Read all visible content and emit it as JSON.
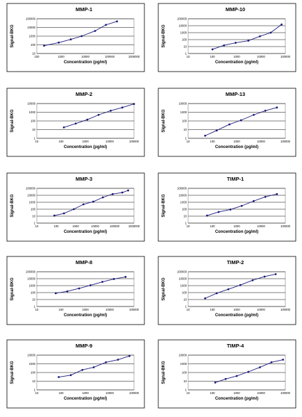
{
  "chart_data": [
    {
      "type": "line",
      "title": "MMP-1",
      "xlabel": "Concentration (pg/ml)",
      "ylabel": "Signal-BKG",
      "xscale": "log",
      "yscale": "log",
      "xlim": [
        100,
        1000000
      ],
      "ylim": [
        10,
        100000
      ],
      "x_ticks": [
        "100",
        "1000",
        "10000",
        "100000",
        "1000000"
      ],
      "y_ticks": [
        "10",
        "100",
        "1000",
        "10000",
        "100000"
      ],
      "grid": "horizontal",
      "series": [
        {
          "x": [
            200,
            800,
            2500,
            7000,
            25000,
            70000,
            200000
          ],
          "y": [
            80,
            180,
            420,
            1000,
            4000,
            20000,
            50000
          ]
        }
      ]
    },
    {
      "type": "line",
      "title": "MMP-10",
      "xlabel": "Concentration (pg/ml)",
      "ylabel": "Signal-BKG",
      "xscale": "log",
      "yscale": "log",
      "xlim": [
        10,
        100000
      ],
      "ylim": [
        1,
        100000
      ],
      "x_ticks": [
        "10",
        "100",
        "1000",
        "10000",
        "100000"
      ],
      "y_ticks": [
        "1",
        "10",
        "100",
        "1000",
        "10000",
        "100000"
      ],
      "grid": "horizontal",
      "series": [
        {
          "x": [
            100,
            300,
            900,
            3000,
            9000,
            25000,
            70000
          ],
          "y": [
            4,
            15,
            35,
            70,
            300,
            1000,
            15000
          ]
        }
      ]
    },
    {
      "type": "line",
      "title": "MMP-2",
      "xlabel": "Concentration (pg/ml)",
      "ylabel": "Signal-BKG",
      "xscale": "log",
      "yscale": "log",
      "xlim": [
        10,
        100000
      ],
      "ylim": [
        1,
        10000
      ],
      "x_ticks": [
        "10",
        "100",
        "1000",
        "10000",
        "100000"
      ],
      "y_ticks": [
        "1",
        "10",
        "100",
        "1000",
        "10000"
      ],
      "grid": "horizontal",
      "series": [
        {
          "x": [
            130,
            400,
            1200,
            3500,
            11000,
            33000,
            100000
          ],
          "y": [
            18,
            50,
            140,
            500,
            1500,
            3500,
            9000
          ]
        }
      ]
    },
    {
      "type": "line",
      "title": "MMP-13",
      "xlabel": "Concentration (pg/ml)",
      "ylabel": "Signal-BKG",
      "xscale": "log",
      "yscale": "log",
      "xlim": [
        10,
        100000
      ],
      "ylim": [
        1,
        10000
      ],
      "x_ticks": [
        "10",
        "100",
        "1000",
        "10000",
        "100000"
      ],
      "y_ticks": [
        "1",
        "10",
        "100",
        "1000",
        "10000"
      ],
      "grid": "horizontal",
      "series": [
        {
          "x": [
            50,
            150,
            500,
            1500,
            5000,
            15000,
            45000
          ],
          "y": [
            2,
            8,
            40,
            120,
            500,
            1500,
            3500
          ]
        }
      ]
    },
    {
      "type": "line",
      "title": "MMP-3",
      "xlabel": "Concentration (pg/ml)",
      "ylabel": "Signal-BKG",
      "xscale": "log",
      "yscale": "log",
      "xlim": [
        10,
        1000000
      ],
      "ylim": [
        1,
        100000
      ],
      "x_ticks": [
        "10",
        "100",
        "1000",
        "10000",
        "100000",
        "1000000"
      ],
      "y_ticks": [
        "1",
        "10",
        "100",
        "1000",
        "10000",
        "100000"
      ],
      "grid": "horizontal",
      "series": [
        {
          "x": [
            80,
            250,
            800,
            2500,
            8000,
            25000,
            80000,
            250000,
            500000
          ],
          "y": [
            12,
            25,
            100,
            500,
            1200,
            5000,
            15000,
            25000,
            50000
          ]
        }
      ]
    },
    {
      "type": "line",
      "title": "TIMP-1",
      "xlabel": "Concentration (pg/ml)",
      "ylabel": "Signal-BKG",
      "xscale": "log",
      "yscale": "log",
      "xlim": [
        10,
        100000
      ],
      "ylim": [
        1,
        100000
      ],
      "x_ticks": [
        "10",
        "100",
        "1000",
        "10000",
        "100000"
      ],
      "y_ticks": [
        "1",
        "10",
        "100",
        "1000",
        "10000",
        "100000"
      ],
      "grid": "horizontal",
      "series": [
        {
          "x": [
            60,
            180,
            550,
            1600,
            5000,
            15000,
            45000
          ],
          "y": [
            12,
            40,
            90,
            300,
            1500,
            6000,
            15000
          ]
        }
      ]
    },
    {
      "type": "line",
      "title": "MMP-8",
      "xlabel": "Concentration (pg/ml)",
      "ylabel": "Signal-BKG",
      "xscale": "log",
      "yscale": "log",
      "xlim": [
        10,
        100000
      ],
      "ylim": [
        1,
        100000
      ],
      "x_ticks": [
        "10",
        "100",
        "1000",
        "10000",
        "100000"
      ],
      "y_ticks": [
        "1",
        "10",
        "100",
        "1000",
        "10000",
        "100000"
      ],
      "grid": "horizontal",
      "series": [
        {
          "x": [
            60,
            180,
            550,
            1600,
            5000,
            15000,
            45000
          ],
          "y": [
            80,
            150,
            400,
            1100,
            3500,
            9000,
            18000
          ]
        }
      ]
    },
    {
      "type": "line",
      "title": "TIMP-2",
      "xlabel": "Concentration (pg/ml)",
      "ylabel": "Signal-BKG",
      "xscale": "log",
      "yscale": "log",
      "xlim": [
        10,
        100000
      ],
      "ylim": [
        1,
        100000
      ],
      "x_ticks": [
        "10",
        "100",
        "1000",
        "10000",
        "100000"
      ],
      "y_ticks": [
        "1",
        "10",
        "100",
        "1000",
        "10000",
        "100000"
      ],
      "grid": "horizontal",
      "series": [
        {
          "x": [
            50,
            150,
            450,
            1400,
            4500,
            14000,
            40000
          ],
          "y": [
            15,
            80,
            300,
            1200,
            6000,
            20000,
            45000
          ]
        }
      ]
    },
    {
      "type": "line",
      "title": "MMP-9",
      "xlabel": "Concentration (pg/ml)",
      "ylabel": "Signal-BKG",
      "xscale": "log",
      "yscale": "log",
      "xlim": [
        10,
        100000
      ],
      "ylim": [
        1,
        10000
      ],
      "x_ticks": [
        "10",
        "100",
        "1000",
        "10000",
        "100000"
      ],
      "y_ticks": [
        "1",
        "10",
        "100",
        "1000",
        "10000"
      ],
      "grid": "horizontal",
      "series": [
        {
          "x": [
            80,
            250,
            750,
            2200,
            7000,
            22000,
            65000
          ],
          "y": [
            30,
            50,
            200,
            400,
            1500,
            3000,
            8000
          ]
        }
      ]
    },
    {
      "type": "line",
      "title": "TIMP-4",
      "xlabel": "Concentration (pg/ml)",
      "ylabel": "Signal-BKG",
      "xscale": "log",
      "yscale": "log",
      "xlim": [
        10,
        100000
      ],
      "ylim": [
        1,
        10000
      ],
      "x_ticks": [
        "10",
        "100",
        "1000",
        "10000",
        "100000"
      ],
      "y_ticks": [
        "1",
        "10",
        "100",
        "1000",
        "10000"
      ],
      "grid": "horizontal",
      "series": [
        {
          "x": [
            130,
            350,
            1000,
            3000,
            9000,
            27000,
            80000
          ],
          "y": [
            7,
            18,
            40,
            120,
            400,
            1500,
            3000
          ]
        }
      ]
    }
  ]
}
